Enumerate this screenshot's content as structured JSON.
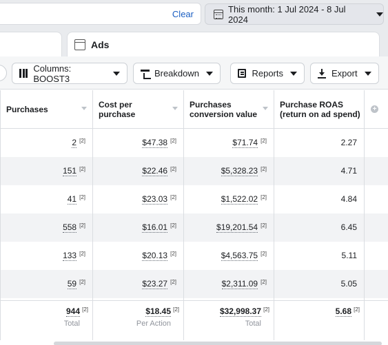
{
  "filter": {
    "clear_label": "Clear"
  },
  "date_range": {
    "label": "This month: 1 Jul 2024 - 8 Jul 2024"
  },
  "tabs": {
    "ads_label": "Ads"
  },
  "toolbar": {
    "columns_label": "Columns: BOOST3",
    "breakdown_label": "Breakdown",
    "reports_label": "Reports",
    "export_label": "Export"
  },
  "table": {
    "headers": {
      "purchases": "Purchases",
      "cost_per_purchase_1": "Cost per",
      "cost_per_purchase_2": "purchase",
      "conv_value_1": "Purchases",
      "conv_value_2": "conversion value",
      "roas_1": "Purchase ROAS",
      "roas_2": "(return on ad spend)"
    },
    "footnote": "[2]",
    "rows": [
      {
        "purchases": "2",
        "cost": "$47.38",
        "value": "$71.74",
        "roas": "2.27"
      },
      {
        "purchases": "151",
        "cost": "$22.46",
        "value": "$5,328.23",
        "roas": "4.71"
      },
      {
        "purchases": "41",
        "cost": "$23.03",
        "value": "$1,522.02",
        "roas": "4.84"
      },
      {
        "purchases": "558",
        "cost": "$16.01",
        "value": "$19,201.54",
        "roas": "6.45"
      },
      {
        "purchases": "133",
        "cost": "$20.13",
        "value": "$4,563.75",
        "roas": "5.11"
      },
      {
        "purchases": "59",
        "cost": "$23.27",
        "value": "$2,311.09",
        "roas": "5.05"
      }
    ],
    "totals": {
      "purchases": "944",
      "purchases_label": "Total",
      "cost": "$18.45",
      "cost_label": "Per Action",
      "value": "$32,998.37",
      "value_label": "Total",
      "roas": "5.68"
    }
  }
}
